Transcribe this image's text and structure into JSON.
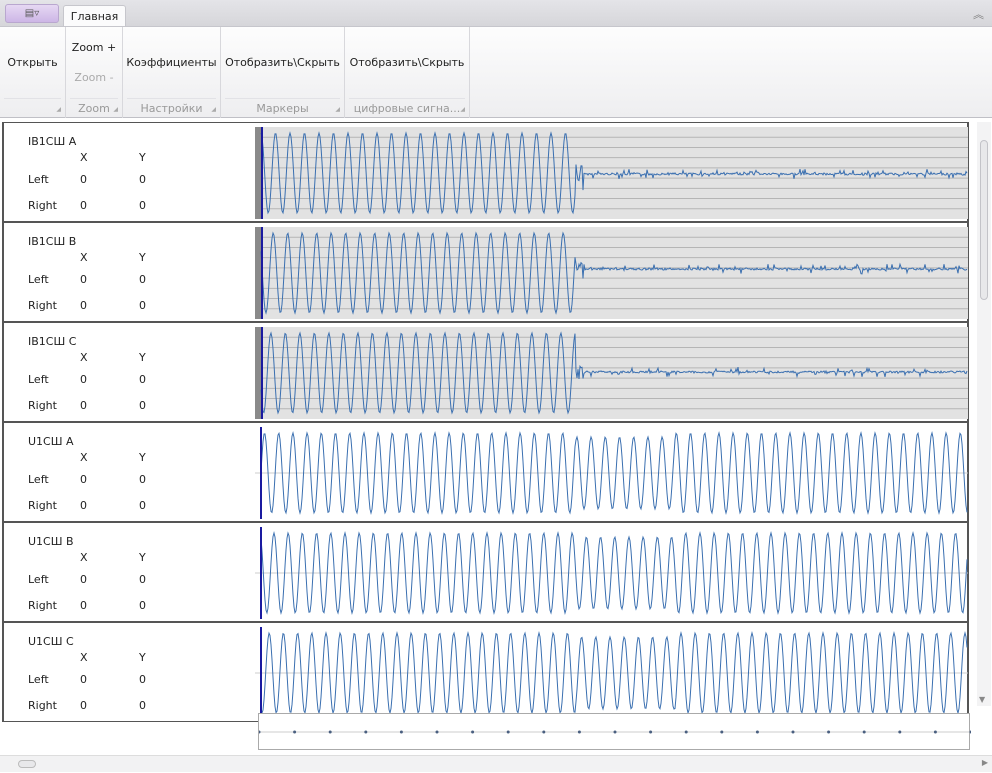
{
  "tabs": {
    "app_menu_label": "▤▿",
    "home": "Главная",
    "collapse_icon": "︽"
  },
  "ribbon": {
    "groups": [
      {
        "buttons": [
          "Открыть"
        ],
        "caption": ""
      },
      {
        "buttons": [
          "Zoom +",
          "Zoom -"
        ],
        "caption": "Zoom"
      },
      {
        "buttons": [
          "Коэффициенты"
        ],
        "caption": "Настройки"
      },
      {
        "buttons": [
          "Отобразить\\Скрыть"
        ],
        "caption": "Маркеры"
      },
      {
        "buttons": [
          "Отобразить\\Скрыть"
        ],
        "caption": "цифровые сигна..."
      }
    ]
  },
  "columns": {
    "x": "X",
    "y": "Y",
    "left": "Left",
    "right": "Right"
  },
  "channels": [
    {
      "name": "IB1СШ A",
      "left_x": "0",
      "left_y": "0",
      "right_x": "0",
      "right_y": "0",
      "kind": "current"
    },
    {
      "name": "IB1СШ B",
      "left_x": "0",
      "left_y": "0",
      "right_x": "0",
      "right_y": "0",
      "kind": "current"
    },
    {
      "name": "IB1СШ C",
      "left_x": "0",
      "left_y": "0",
      "right_x": "0",
      "right_y": "0",
      "kind": "current"
    },
    {
      "name": "U1СШ A",
      "left_x": "0",
      "left_y": "0",
      "right_x": "0",
      "right_y": "0",
      "kind": "voltage"
    },
    {
      "name": "U1СШ B",
      "left_x": "0",
      "left_y": "0",
      "right_x": "0",
      "right_y": "0",
      "kind": "voltage"
    },
    {
      "name": "U1СШ C",
      "left_x": "0",
      "left_y": "0",
      "right_x": "0",
      "right_y": "0",
      "kind": "voltage"
    }
  ],
  "colors": {
    "signal": "#3a6fb0",
    "marker": "#1a1aa0",
    "current_bg": "#e2e2e2"
  }
}
